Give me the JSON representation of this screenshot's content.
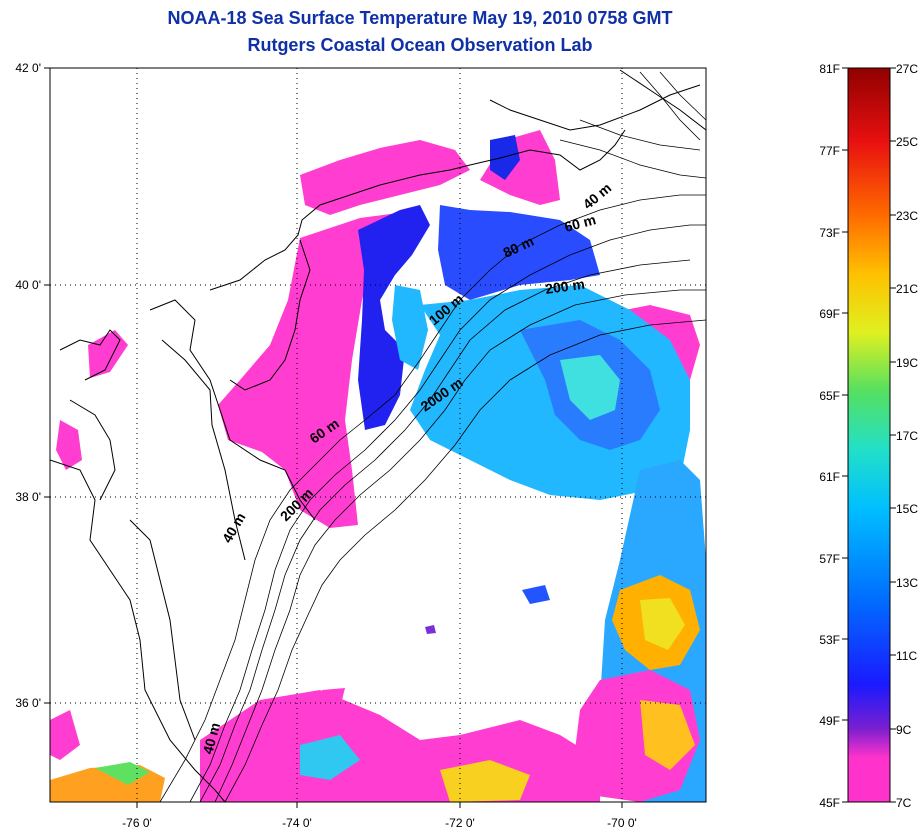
{
  "header": {
    "title": "NOAA-18 Sea Surface Temperature May 19, 2010 0758 GMT",
    "subtitle": "Rutgers Coastal Ocean Observation Lab"
  },
  "map": {
    "lon_ticks": [
      "-76 0'",
      "-74 0'",
      "-72 0'",
      "-70 0'"
    ],
    "lat_ticks": [
      "42 0'",
      "40 0'",
      "38 0'",
      "36 0'"
    ],
    "contour_labels": [
      "40 m",
      "60 m",
      "80 m",
      "200 m",
      "100 m",
      "2000 m",
      "60 m",
      "200 m",
      "40 m",
      "40 m"
    ]
  },
  "colorbar": {
    "fahrenheit": [
      "81F",
      "77F",
      "73F",
      "69F",
      "65F",
      "61F",
      "57F",
      "53F",
      "49F",
      "45F"
    ],
    "celsius": [
      "27C",
      "25C",
      "23C",
      "21C",
      "19C",
      "17C",
      "15C",
      "13C",
      "11C",
      "9C",
      "7C"
    ],
    "colors": [
      "#ff33cc",
      "#7a1fcf",
      "#1a1aff",
      "#0070ff",
      "#00bfff",
      "#22e0c8",
      "#55e060",
      "#e0f020",
      "#ffc000",
      "#ff6a00",
      "#e81010",
      "#900000"
    ]
  }
}
